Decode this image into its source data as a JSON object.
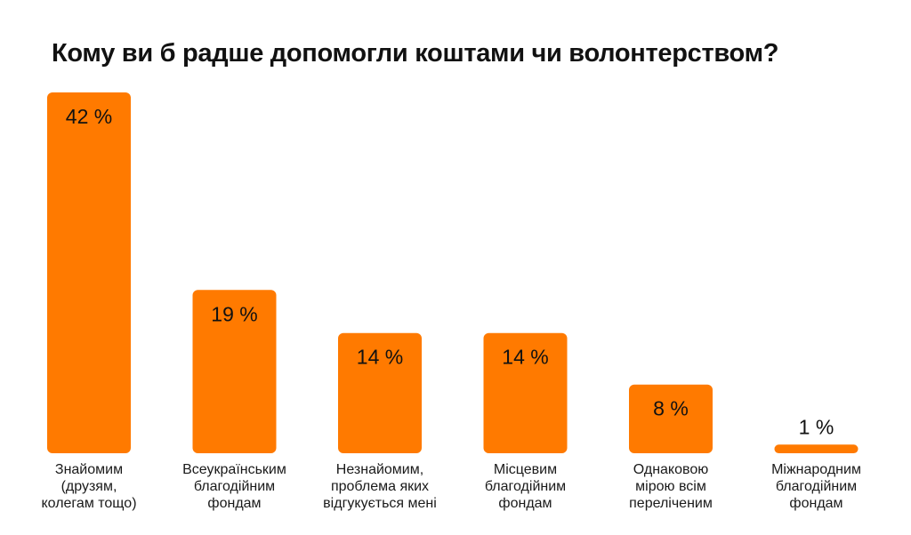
{
  "chart_data": {
    "type": "bar",
    "title": "Кому ви б радше допомогли коштами чи волонтерством?",
    "categories": [
      "Знайомим\n(друзям,\nколегам тощо)",
      "Всеукраїнським\nблагодійним\nфондам",
      "Незнайомим,\nпроблема яких\nвідгукується мені",
      "Місцевим\nблагодійним\nфондам",
      "Однаковою\nмірою всім\nпереліченим",
      "Міжнародним\nблагодійним\nфондам"
    ],
    "values": [
      42,
      19,
      14,
      14,
      8,
      1
    ],
    "value_labels": [
      "42 %",
      "19 %",
      "14 %",
      "14 %",
      "8 %",
      "1 %"
    ],
    "unit": "%",
    "xlabel": "",
    "ylabel": "",
    "ylim": [
      0,
      42
    ],
    "grid": false,
    "legend": "none",
    "bar_color": "#FF7A00"
  }
}
